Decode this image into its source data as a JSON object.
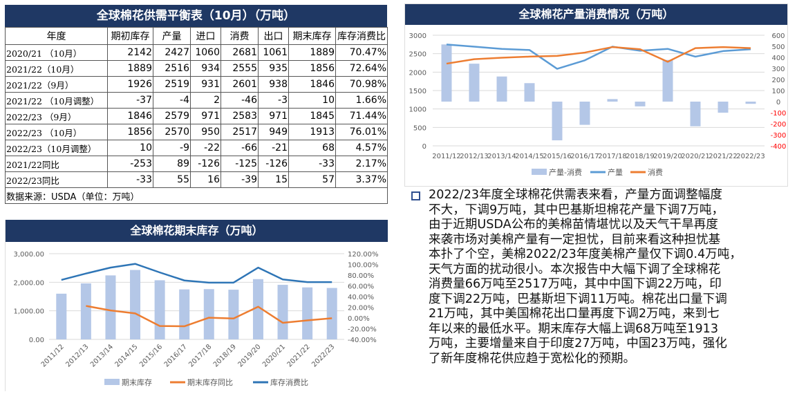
{
  "table": {
    "title": "全球棉花供需平衡表（10月）（万吨）",
    "headers": [
      "年度",
      "期初库存",
      "产量",
      "进口",
      "消费",
      "出口",
      "期末库存",
      "库存消费比"
    ],
    "rows": [
      [
        "2020/21 （10月）",
        "2142",
        "2427",
        "1060",
        "2681",
        "1061",
        "1889",
        "70.47%"
      ],
      [
        "2021/22（10月）",
        "1889",
        "2516",
        "934",
        "2555",
        "935",
        "1856",
        "72.64%"
      ],
      [
        "2021/22（9月）",
        "1926",
        "2519",
        "931",
        "2601",
        "938",
        "1846",
        "70.98%"
      ],
      [
        "2021/22 （10月调整）",
        "-37",
        "-4",
        "2",
        "-46",
        "-3",
        "10",
        "1.66%"
      ],
      [
        "2022/23 （9月）",
        "1846",
        "2579",
        "971",
        "2583",
        "971",
        "1845",
        "71.44%"
      ],
      [
        "2022/23 （10月）",
        "1856",
        "2570",
        "950",
        "2517",
        "949",
        "1913",
        "76.01%"
      ],
      [
        "2022/23（10月调整）",
        "10",
        "-9",
        "-22",
        "-66",
        "-21",
        "68",
        "4.57%"
      ],
      [
        "2021/22同比",
        "-253",
        "89",
        "-126",
        "-125",
        "-126",
        "-33",
        "2.17%"
      ],
      [
        "2022/23同比",
        "-33",
        "55",
        "16",
        "-39",
        "15",
        "57",
        "3.37%"
      ]
    ],
    "source": "数据来源：USDA（单位：万吨）"
  },
  "chart_data": [
    {
      "type": "bar+line",
      "title": "全球棉花产量消费情况（万吨）",
      "categories": [
        "2011/12",
        "2012/13",
        "2013/14",
        "2014/15",
        "2015/16",
        "2016/17",
        "2017/18",
        "2018/19",
        "2019/20",
        "2020/21",
        "2021/22",
        "2022/23"
      ],
      "left_ticks": [
        "0",
        "500",
        "1000",
        "1500",
        "2000",
        "2500",
        "3000"
      ],
      "right_ticks": [
        "-400",
        "-300",
        "-200",
        "-100",
        "0",
        "100",
        "200",
        "300",
        "400",
        "500",
        "600"
      ],
      "ylim_left": [
        0,
        3000
      ],
      "ylim_right": [
        -400,
        600
      ],
      "series": [
        {
          "name": "产量-消费",
          "type": "bar",
          "axis": "right",
          "color": "#b4c7e7",
          "values": [
            517,
            343,
            227,
            167,
            -350,
            -210,
            23,
            -43,
            377,
            -223,
            -100,
            -20
          ]
        },
        {
          "name": "产量",
          "type": "line",
          "axis": "left",
          "color": "#5b9bd5",
          "values": [
            2750,
            2690,
            2630,
            2600,
            2090,
            2320,
            2690,
            2580,
            2630,
            2420,
            2570,
            2620
          ]
        },
        {
          "name": "消费",
          "type": "line",
          "axis": "left",
          "color": "#ed7d31",
          "values": [
            2230,
            2350,
            2390,
            2420,
            2440,
            2530,
            2680,
            2620,
            2280,
            2650,
            2680,
            2650
          ]
        }
      ],
      "negative_tick_color": "#ff0000",
      "legend": "bottom"
    },
    {
      "type": "bar+line",
      "title": "全球棉花期末库存（万吨）",
      "categories": [
        "2011/12",
        "2012/13",
        "2013/14",
        "2014/15",
        "2015/16",
        "2016/17",
        "2017/18",
        "2018/19",
        "2019/20",
        "2020/21",
        "2021/22",
        "2022/23"
      ],
      "left_ticks": [
        "0.00",
        "1,000.00",
        "2,000.00",
        "3,000.00"
      ],
      "right_ticks": [
        "-40.00%",
        "-20.00%",
        "0.00%",
        "20.00%",
        "40.00%",
        "60.00%",
        "80.00%",
        "100.00%",
        "120.00%"
      ],
      "ylim_left": [
        0,
        3000
      ],
      "ylim_right": [
        -40,
        120
      ],
      "series": [
        {
          "name": "期末库存",
          "type": "bar",
          "axis": "left",
          "color": "#b4c7e7",
          "values": [
            1600,
            1960,
            2240,
            2430,
            2070,
            1750,
            1760,
            1740,
            2110,
            1910,
            1820,
            1800
          ]
        },
        {
          "name": "期末库存同比",
          "type": "line",
          "axis": "right",
          "color": "#ed7d31",
          "values": [
            null,
            22.5,
            14,
            8.5,
            -15,
            -15.5,
            0.5,
            -1,
            21,
            -9,
            -4.5,
            -0.5
          ]
        },
        {
          "name": "库存消费比",
          "type": "line",
          "axis": "right",
          "color": "#2e75b6",
          "values": [
            71,
            83,
            94,
            101,
            85,
            70,
            66,
            66,
            94,
            72,
            67,
            67
          ]
        }
      ],
      "legend": "bottom"
    }
  ],
  "commentary": {
    "lines": [
      "2022/23年度全球棉花供需表来看，产量方面调整幅度",
      "不大，下调9万吨，其中巴基斯坦棉花产量下调7万吨，",
      "由于近期USDA公布的美棉苗情堪忧以及天气干旱再度",
      "来袭市场对美棉产量有一定担忧，目前来看这种担忧基",
      "本扑了个空，美棉2022/23年度美棉产量仅下调0.4万吨，",
      "天气方面的扰动很小。本次报告中大幅下调了全球棉花",
      "消费量66万吨至2517万吨，其中中国下调22万吨，印",
      "度下调22万吨，巴基斯坦下调11万吨。棉花出口量下调",
      "21万吨，其中美国棉花出口量再度下调2万吨，来到七",
      "年以来的最低水平。期末库存大幅上调68万吨至1913",
      "万吨，主要增量来自于印度27万吨，中国23万吨，强化",
      "了新年度棉花供应趋于宽松化的预期。"
    ]
  }
}
